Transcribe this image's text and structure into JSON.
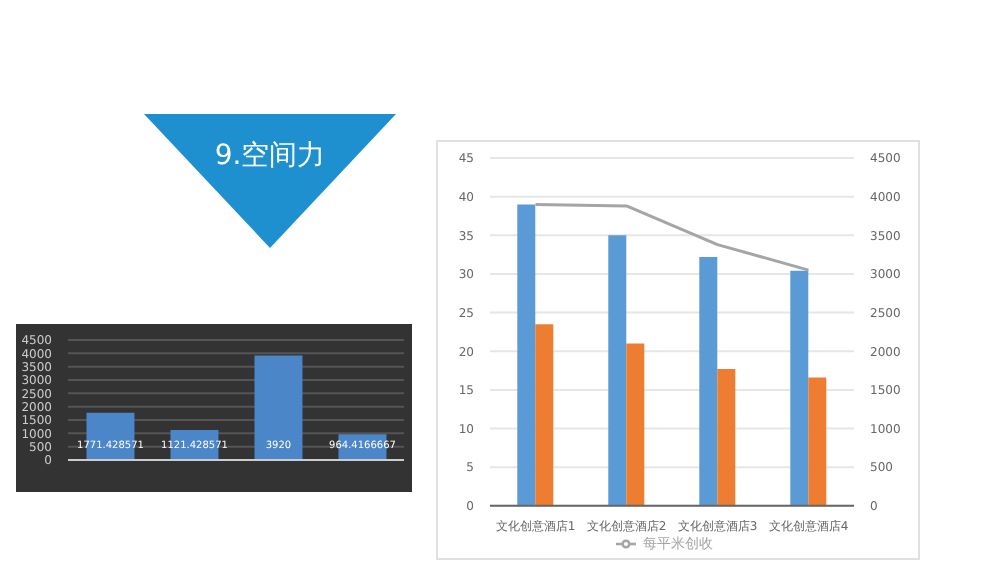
{
  "chart_data": [
    {
      "type": "bar",
      "title": "9.空间力",
      "categories": [
        null,
        null,
        null,
        null
      ],
      "values": [
        1771.428571,
        1121.428571,
        3920,
        964.4166667
      ],
      "color": "#4a86c8",
      "ylim": [
        0,
        4500
      ],
      "yticks": [
        0,
        500,
        1000,
        1500,
        2000,
        2500,
        3000,
        3500,
        4000,
        4500
      ],
      "grid": "y",
      "data_labels": true
    },
    {
      "type": "bar",
      "categories": [
        "文化创意酒店1",
        "文化创意酒店2",
        "文化创意酒店3",
        "文化创意酒店4"
      ],
      "series": [
        {
          "color": "#5b9bd5",
          "values": [
            39,
            35,
            32.2,
            30.4
          ]
        },
        {
          "color": "#ed7d31",
          "values": [
            23.5,
            21,
            17.7,
            16.6
          ]
        },
        {
          "name": "每平米创收",
          "type": "line",
          "axis": "y2",
          "color": "#a5a5a5",
          "values": [
            3900,
            3880,
            3380,
            3050
          ]
        }
      ],
      "ylim": [
        0,
        45
      ],
      "yticks": [
        0,
        5,
        10,
        15,
        20,
        25,
        30,
        35,
        40,
        45
      ],
      "y2lim": [
        0,
        4500
      ],
      "y2ticks": [
        0,
        500,
        1000,
        1500,
        2000,
        2500,
        3000,
        3500,
        4000,
        4500
      ],
      "grid": "y",
      "legend": "bottom"
    }
  ]
}
